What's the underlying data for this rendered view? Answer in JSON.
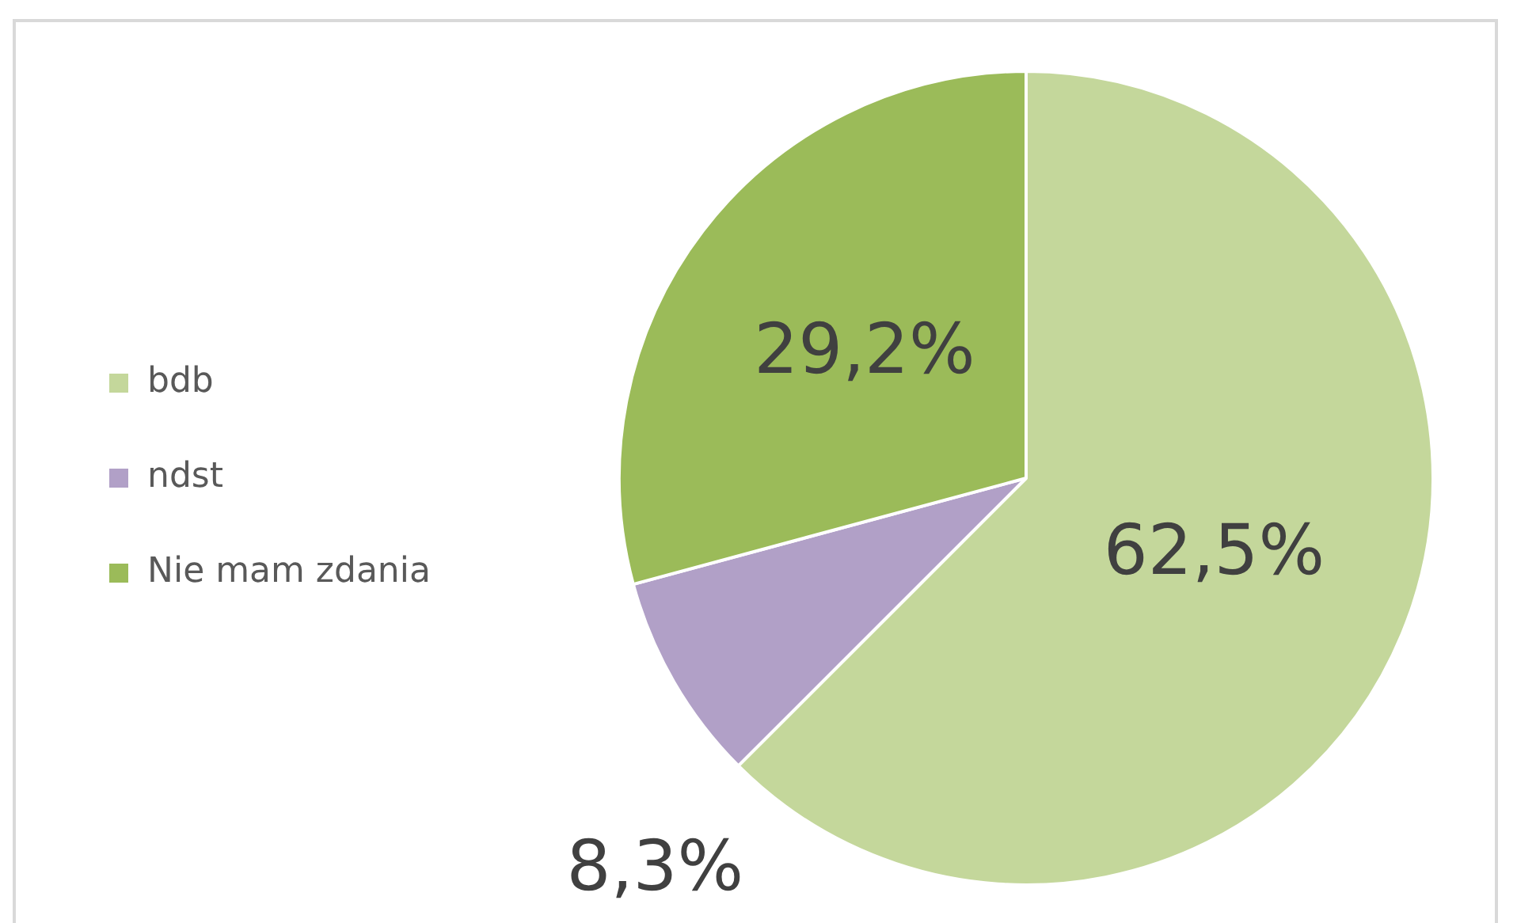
{
  "chart_data": {
    "type": "pie",
    "categories": [
      "bdb",
      "ndst",
      "Nie mam zdania"
    ],
    "values": [
      62.5,
      8.3,
      29.2
    ],
    "colors": [
      "#c4d79b",
      "#b1a0c7",
      "#9bbb59"
    ],
    "value_labels": [
      "62,5%",
      "8,3%",
      "29,2%"
    ],
    "legend": "left"
  }
}
